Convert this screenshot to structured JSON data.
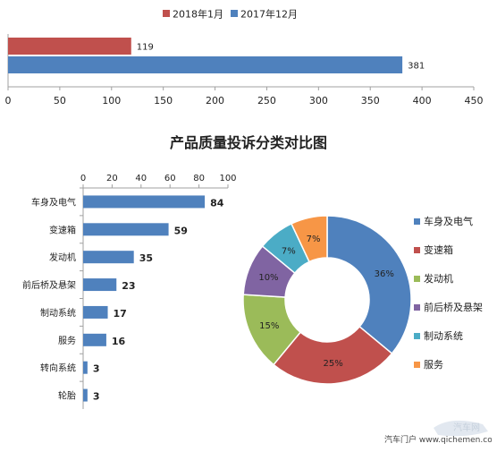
{
  "chart_data": [
    {
      "type": "bar",
      "orientation": "horizontal",
      "series": [
        {
          "name": "2018年1月",
          "values": [
            119
          ],
          "color": "#c0504d"
        },
        {
          "name": "2017年12月",
          "values": [
            381
          ],
          "color": "#4f81bd"
        }
      ],
      "xlim": [
        0,
        450
      ],
      "xticks": [
        0,
        50,
        100,
        150,
        200,
        250,
        300,
        350,
        400,
        450
      ],
      "legend": "top",
      "grid": false
    },
    {
      "type": "bar",
      "orientation": "horizontal",
      "title": "产品质量投诉分类对比图",
      "categories": [
        "车身及电气",
        "变速箱",
        "发动机",
        "前后桥及悬架",
        "制动系统",
        "服务",
        "转向系统",
        "轮胎"
      ],
      "values": [
        84,
        59,
        35,
        23,
        17,
        16,
        3,
        3
      ],
      "xlim": [
        0,
        100
      ],
      "xticks": [
        0,
        20,
        40,
        60,
        80,
        100
      ],
      "color": "#4f81bd",
      "grid": false
    },
    {
      "type": "pie",
      "variant": "donut",
      "slices": [
        {
          "label": "车身及电气",
          "value": 36,
          "display": "36%",
          "color": "#4f81bd"
        },
        {
          "label": "变速箱",
          "value": 25,
          "display": "25%",
          "color": "#c0504d"
        },
        {
          "label": "发动机",
          "value": 15,
          "display": "15%",
          "color": "#9bbb59"
        },
        {
          "label": "前后桥及悬架",
          "value": 10,
          "display": "10%",
          "color": "#8064a2"
        },
        {
          "label": "制动系统",
          "value": 7,
          "display": "7%",
          "color": "#4bacc6"
        },
        {
          "label": "服务",
          "value": 7,
          "display": "7%",
          "color": "#f79646"
        }
      ],
      "legend": "right"
    }
  ],
  "watermark": {
    "text": "汽车门户 www.qichemen.com",
    "brand": "汽车网"
  }
}
